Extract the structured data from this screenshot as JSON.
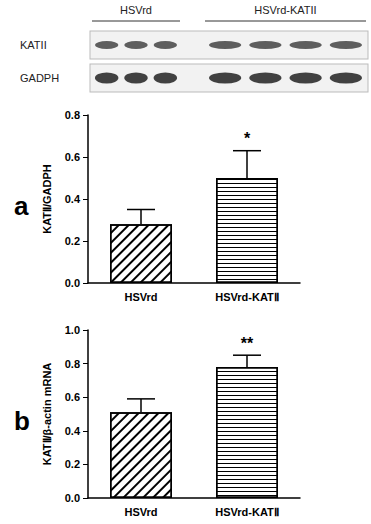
{
  "blot": {
    "groups": [
      {
        "label": "HSVrd",
        "lanes": 3
      },
      {
        "label": "HSVrd-KATII",
        "lanes": 4
      }
    ],
    "rows": [
      "KATII",
      "GADPH"
    ]
  },
  "chart_data": [
    {
      "type": "bar",
      "y_label": "KATⅡ/GADPH",
      "categories": [
        "HSVrd",
        "HSVrd-KATⅡ"
      ],
      "values": [
        0.28,
        0.5
      ],
      "errors": [
        0.07,
        0.13
      ],
      "color": "#ffffff",
      "ylim": [
        0,
        0.8
      ],
      "yticks": [
        {
          "value": 0,
          "label": "0.0"
        },
        0.2,
        0.4,
        0.6,
        0.8
      ],
      "grid": false,
      "annotations": [
        {
          "text": "a"
        },
        {
          "text": "*",
          "category": "HSVrd-KATⅡ"
        }
      ]
    },
    {
      "type": "bar",
      "y_label": "KATⅡ/β-actin mRNA",
      "categories": [
        "HSVrd",
        "HSVrd-KATⅡ"
      ],
      "values": [
        0.51,
        0.78
      ],
      "errors": [
        0.08,
        0.07
      ],
      "color": "#ffffff",
      "ylim": [
        0,
        1.0
      ],
      "yticks": [
        {
          "value": 0,
          "label": "0.0"
        },
        0.2,
        0.4,
        0.6,
        0.8,
        {
          "value": 1.0,
          "label": "1.0"
        }
      ],
      "grid": false,
      "annotations": [
        {
          "text": "b"
        },
        {
          "text": "**",
          "category": "HSVrd-KATⅡ"
        }
      ]
    }
  ]
}
